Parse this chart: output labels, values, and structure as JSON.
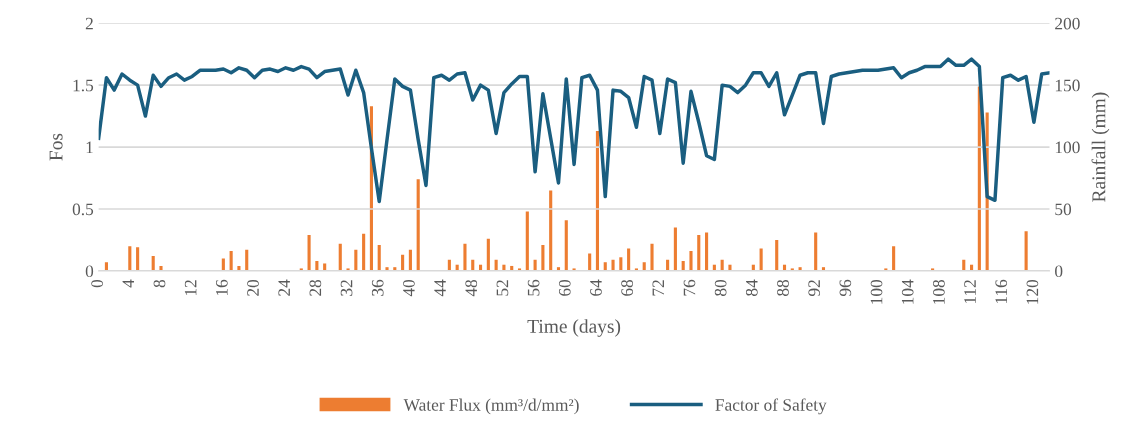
{
  "chart_data": {
    "type": "bar",
    "xlabel": "Time (days)",
    "ylabel": "Fos",
    "y2label": "Rainfall (mm)",
    "x": [
      0,
      1,
      2,
      3,
      4,
      5,
      6,
      7,
      8,
      9,
      10,
      11,
      12,
      13,
      14,
      15,
      16,
      17,
      18,
      19,
      20,
      21,
      22,
      23,
      24,
      25,
      26,
      27,
      28,
      29,
      30,
      31,
      32,
      33,
      34,
      35,
      36,
      37,
      38,
      39,
      40,
      41,
      42,
      43,
      44,
      45,
      46,
      47,
      48,
      49,
      50,
      51,
      52,
      53,
      54,
      55,
      56,
      57,
      58,
      59,
      60,
      61,
      62,
      63,
      64,
      65,
      66,
      67,
      68,
      69,
      70,
      71,
      72,
      73,
      74,
      75,
      76,
      77,
      78,
      79,
      80,
      81,
      82,
      83,
      84,
      85,
      86,
      87,
      88,
      89,
      90,
      91,
      92,
      93,
      94,
      95,
      96,
      97,
      98,
      99,
      100,
      101,
      102,
      103,
      104,
      105,
      106,
      107,
      108,
      109,
      110,
      111,
      112,
      113,
      114,
      115,
      116,
      117,
      118,
      119,
      120,
      121,
      122
    ],
    "xlim": [
      0,
      122
    ],
    "xticks": [
      0,
      4,
      8,
      12,
      16,
      20,
      24,
      28,
      32,
      36,
      40,
      44,
      48,
      52,
      56,
      60,
      64,
      68,
      72,
      76,
      80,
      84,
      88,
      92,
      96,
      100,
      104,
      108,
      112,
      116,
      120
    ],
    "ylim": [
      0,
      2
    ],
    "yticks": [
      0,
      0.5,
      1,
      1.5,
      2
    ],
    "y2lim": [
      0,
      200
    ],
    "y2ticks": [
      0,
      50,
      100,
      150,
      200
    ],
    "grid": "y",
    "legend": "bottom",
    "marker": "none",
    "line_style": "solid",
    "series": [
      {
        "name": "Water Flux (mm³/d/mm²)",
        "axis": "y2",
        "color": "#ed7d31",
        "values": [
          null,
          7,
          null,
          null,
          20,
          19,
          null,
          12,
          4,
          null,
          null,
          null,
          null,
          null,
          null,
          null,
          10,
          16,
          4,
          17,
          null,
          null,
          null,
          null,
          null,
          null,
          2,
          29,
          8,
          6,
          null,
          22,
          2,
          17,
          30,
          133,
          21,
          3,
          3,
          13,
          17,
          74,
          null,
          null,
          null,
          9,
          5,
          22,
          9,
          5,
          26,
          9,
          5,
          4,
          2,
          48,
          9,
          21,
          65,
          3,
          41,
          2,
          null,
          14,
          113,
          7,
          9,
          11,
          18,
          2,
          7,
          22,
          null,
          9,
          35,
          8,
          16,
          29,
          31,
          5,
          9,
          5,
          null,
          null,
          5,
          18,
          null,
          25,
          5,
          2,
          3,
          null,
          31,
          3,
          null,
          null,
          null,
          null,
          null,
          null,
          null,
          2,
          20,
          null,
          null,
          null,
          null,
          2,
          null,
          null,
          null,
          9,
          5,
          149,
          128,
          null,
          null,
          null,
          null,
          32,
          null,
          null,
          null
        ]
      },
      {
        "name": "Factor of Safety",
        "type": "line",
        "axis": "y",
        "color": "#1a5e80",
        "values": [
          1.07,
          1.56,
          1.46,
          1.59,
          1.54,
          1.5,
          1.25,
          1.58,
          1.49,
          1.56,
          1.59,
          1.54,
          1.57,
          1.62,
          1.62,
          1.62,
          1.63,
          1.6,
          1.64,
          1.62,
          1.56,
          1.62,
          1.63,
          1.61,
          1.64,
          1.62,
          1.65,
          1.63,
          1.56,
          1.61,
          1.62,
          1.63,
          1.42,
          1.62,
          1.44,
          0.99,
          0.56,
          1.06,
          1.55,
          1.49,
          1.46,
          1.06,
          0.69,
          1.56,
          1.58,
          1.54,
          1.59,
          1.6,
          1.38,
          1.5,
          1.46,
          1.11,
          1.44,
          1.51,
          1.57,
          1.57,
          0.8,
          1.43,
          1.07,
          0.71,
          1.55,
          0.86,
          1.56,
          1.58,
          1.46,
          0.6,
          1.46,
          1.45,
          1.4,
          1.16,
          1.57,
          1.54,
          1.11,
          1.55,
          1.52,
          0.87,
          1.45,
          1.2,
          0.93,
          0.9,
          1.5,
          1.49,
          1.44,
          1.5,
          1.6,
          1.6,
          1.49,
          1.6,
          1.26,
          1.42,
          1.58,
          1.6,
          1.6,
          1.19,
          1.57,
          1.59,
          1.6,
          1.61,
          1.62,
          1.62,
          1.62,
          1.63,
          1.64,
          1.56,
          1.6,
          1.62,
          1.65,
          1.65,
          1.65,
          1.71,
          1.66,
          1.66,
          1.71,
          1.65,
          0.6,
          0.57,
          1.56,
          1.58,
          1.54,
          1.57,
          1.2,
          1.59,
          1.6
        ]
      }
    ]
  }
}
